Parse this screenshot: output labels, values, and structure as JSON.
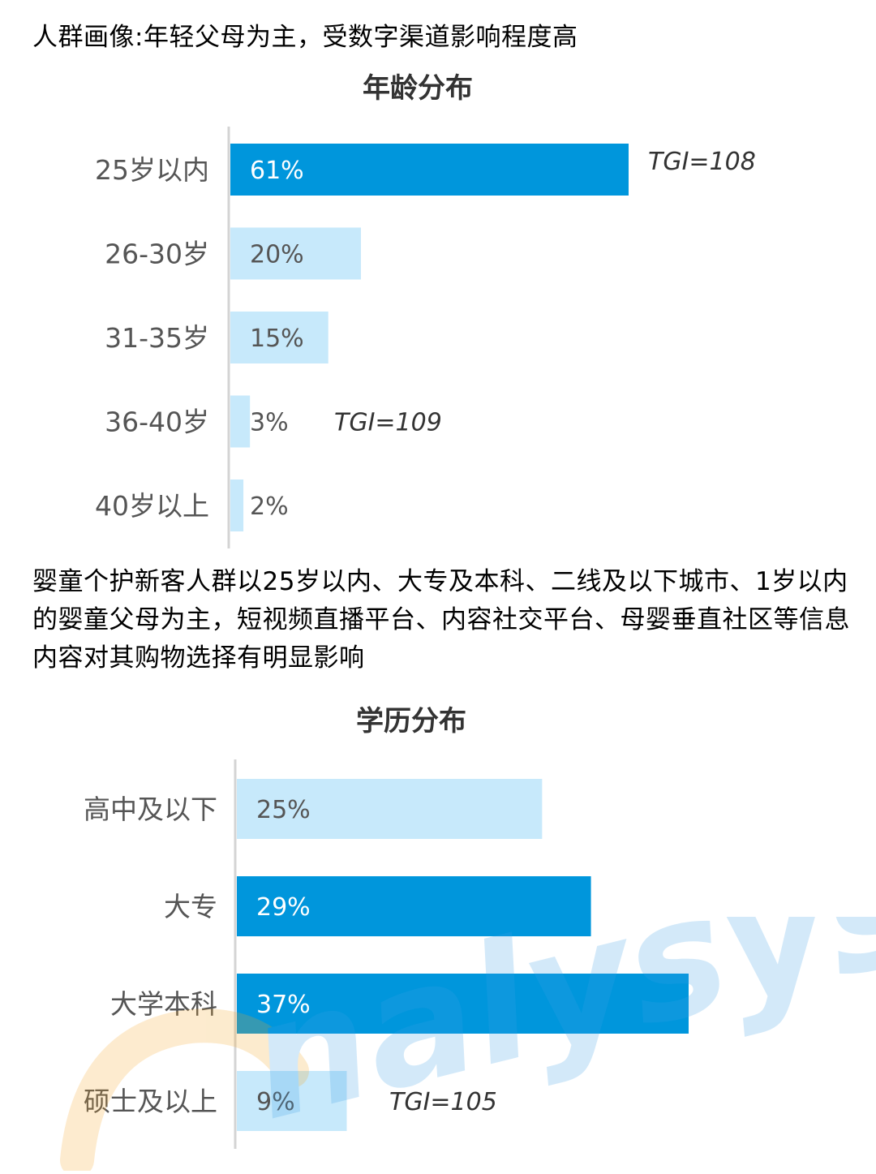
{
  "page": {
    "heading": "人群画像:年轻父母为主，受数字渠道影响程度高",
    "paragraph": "婴童个护新客人群以25岁以内、大专及本科、二线及以下城市、1岁以内的婴童父母为主，短视频直播平台、内容社交平台、母婴垂直社区等信息内容对其购物选择有明显影响"
  },
  "colors": {
    "highlight_bar": "#0096DC",
    "light_bar": "#C7E9FB",
    "label_text": "#555555",
    "title_text": "#333333",
    "axis": "#d4d4d4"
  },
  "chart_data": [
    {
      "type": "bar",
      "orientation": "horizontal",
      "title": "年龄分布",
      "categories": [
        "25岁以内",
        "26-30岁",
        "31-35岁",
        "36-40岁",
        "40岁以上"
      ],
      "values": [
        61,
        20,
        15,
        3,
        2
      ],
      "value_labels": [
        "61%",
        "20%",
        "15%",
        "3%",
        "2%"
      ],
      "highlight": [
        true,
        false,
        false,
        false,
        false
      ],
      "annotations": [
        {
          "category": "25岁以内",
          "text": "TGI=108"
        },
        {
          "category": "36-40岁",
          "text": "TGI=109"
        }
      ],
      "xlim": [
        0,
        61
      ],
      "grid": false,
      "legend": "none"
    },
    {
      "type": "bar",
      "orientation": "horizontal",
      "title": "学历分布",
      "categories": [
        "高中及以下",
        "大专",
        "大学本科",
        "硕士及以上"
      ],
      "values": [
        25,
        29,
        37,
        9
      ],
      "value_labels": [
        "25%",
        "29%",
        "37%",
        "9%"
      ],
      "highlight": [
        false,
        true,
        true,
        false
      ],
      "annotations": [
        {
          "category": "硕士及以上",
          "text": "TGI=105"
        }
      ],
      "xlim": [
        0,
        37
      ],
      "grid": false,
      "legend": "none"
    }
  ]
}
